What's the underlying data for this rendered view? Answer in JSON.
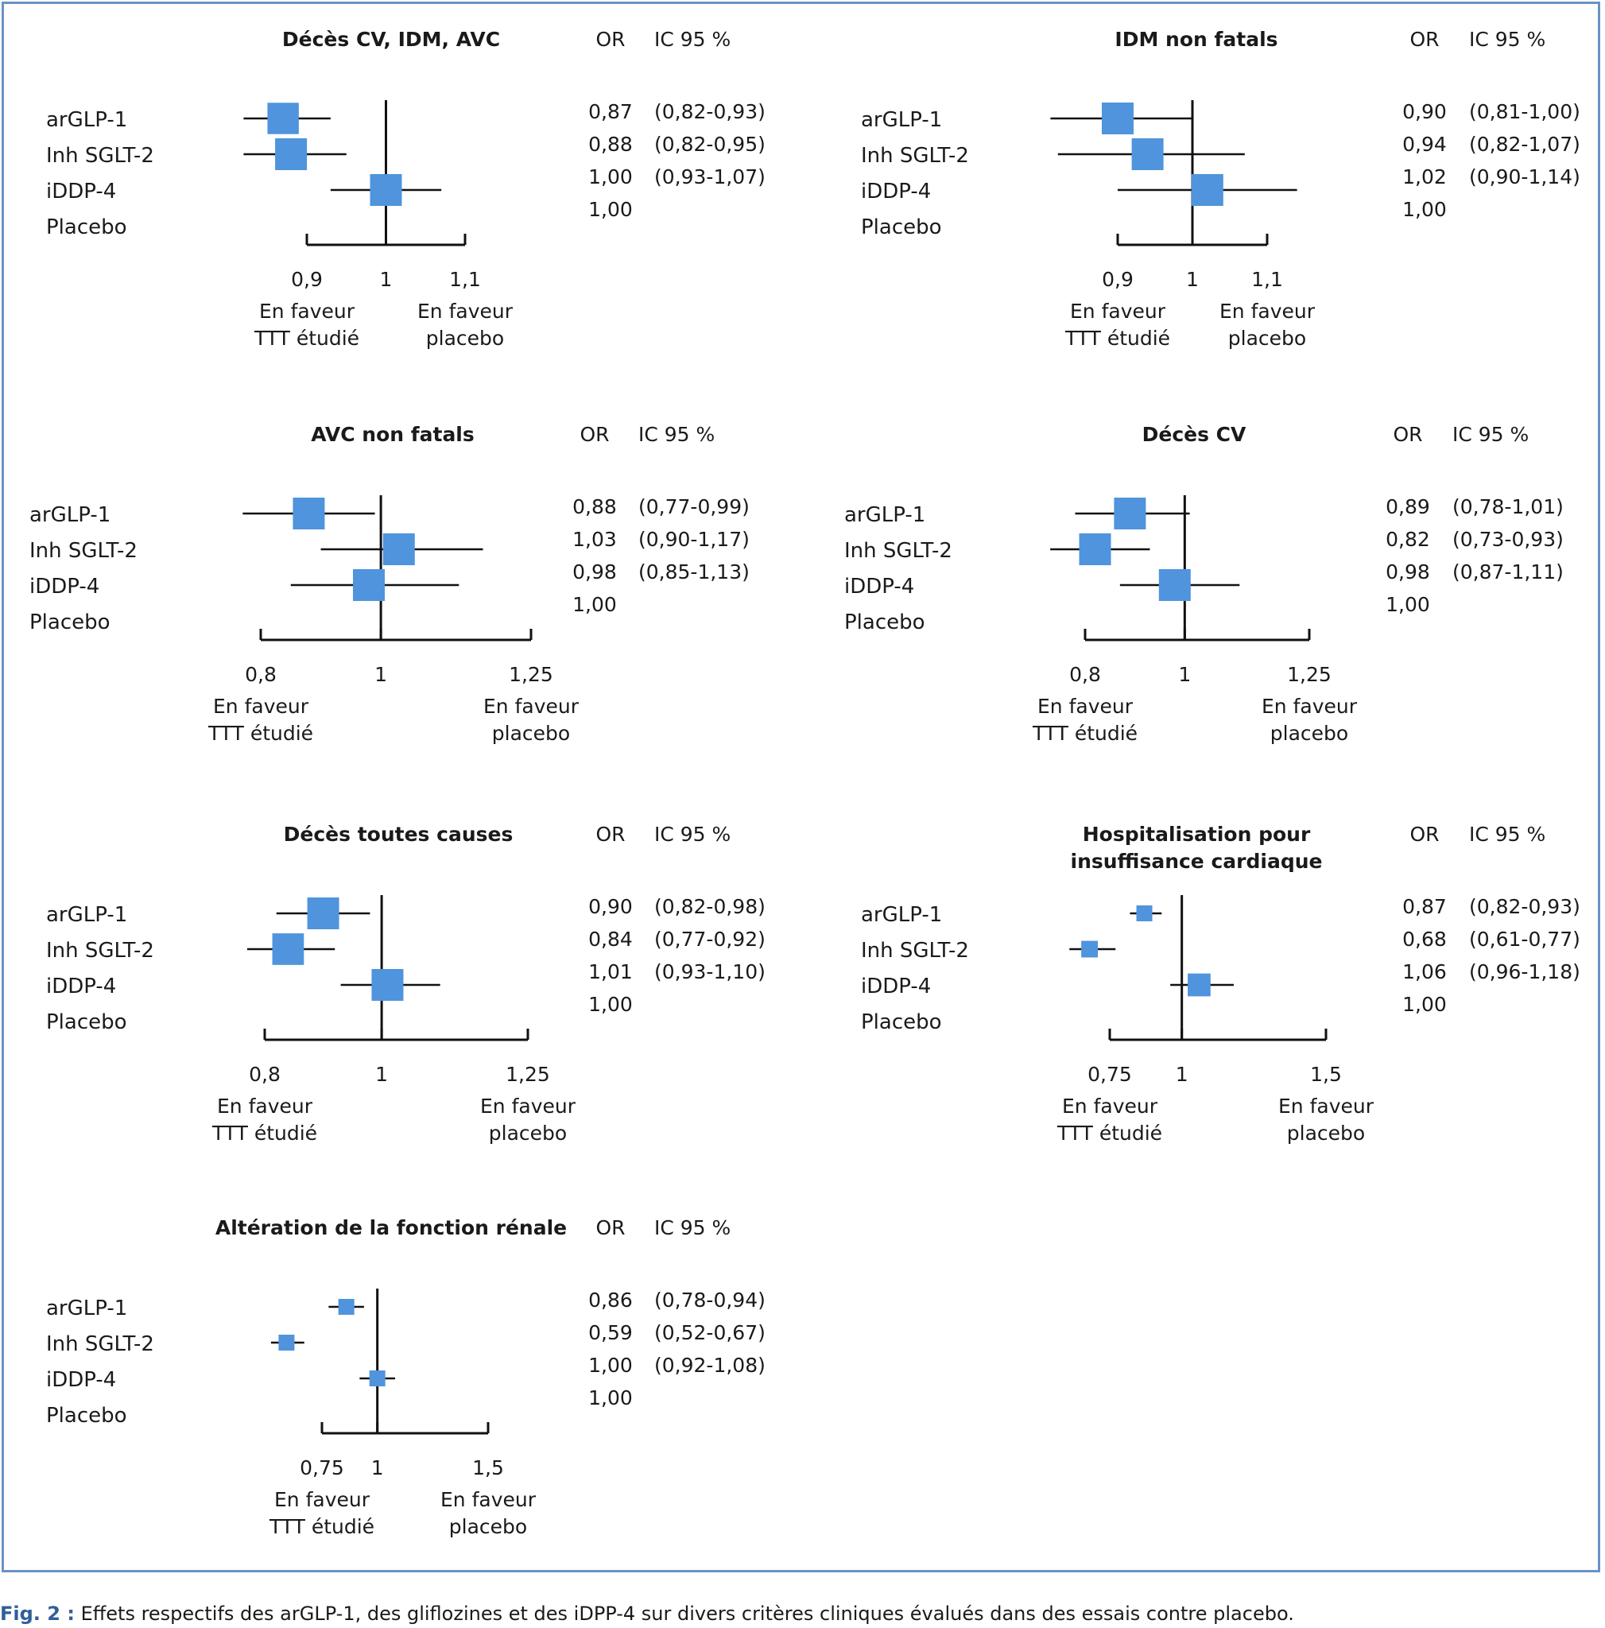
{
  "column_headers": {
    "or": "OR",
    "ci": "IC 95 %"
  },
  "favour_labels": {
    "left": [
      "En faveur",
      "TTT étudié"
    ],
    "right": [
      "En faveur",
      "placebo"
    ]
  },
  "marker_color": "#4f94dc",
  "frame_color": "#6a93c6",
  "caption": {
    "label": "Fig. 2 :",
    "text": " Effets respectifs des arGLP-1, des gliflozines et des iDPP-4 sur divers critères cliniques évalués dans des essais contre placebo."
  },
  "chart_data": [
    {
      "type": "forest",
      "title": [
        "Décès CV, IDM, AVC"
      ],
      "xlim": [
        0.9,
        1.1
      ],
      "ticks": [
        "0,9",
        "1",
        "1,1"
      ],
      "tick_values": [
        0.9,
        1,
        1.1
      ],
      "rows": [
        {
          "label": "arGLP-1",
          "or": 0.87,
          "ci": [
            0.82,
            0.93
          ],
          "or_text": "0,87",
          "ci_text": "(0,82-0,93)"
        },
        {
          "label": "Inh SGLT-2",
          "or": 0.88,
          "ci": [
            0.82,
            0.95
          ],
          "or_text": "0,88",
          "ci_text": "(0,82-0,95)"
        },
        {
          "label": "iDDP-4",
          "or": 1.0,
          "ci": [
            0.93,
            1.07
          ],
          "or_text": "1,00",
          "ci_text": "(0,93-1,07)"
        },
        {
          "label": "Placebo",
          "or": 1.0,
          "ci": null,
          "or_text": "1,00",
          "ci_text": ""
        }
      ]
    },
    {
      "type": "forest",
      "title": [
        "IDM non fatals"
      ],
      "xlim": [
        0.9,
        1.1
      ],
      "ticks": [
        "0,9",
        "1",
        "1,1"
      ],
      "tick_values": [
        0.9,
        1,
        1.1
      ],
      "rows": [
        {
          "label": "arGLP-1",
          "or": 0.9,
          "ci": [
            0.81,
            1.0
          ],
          "or_text": "0,90",
          "ci_text": "(0,81-1,00)"
        },
        {
          "label": "Inh SGLT-2",
          "or": 0.94,
          "ci": [
            0.82,
            1.07
          ],
          "or_text": "0,94",
          "ci_text": "(0,82-1,07)"
        },
        {
          "label": "iDDP-4",
          "or": 1.02,
          "ci": [
            0.9,
            1.14
          ],
          "or_text": "1,02",
          "ci_text": "(0,90-1,14)"
        },
        {
          "label": "Placebo",
          "or": 1.0,
          "ci": null,
          "or_text": "1,00",
          "ci_text": ""
        }
      ]
    },
    {
      "type": "forest",
      "title": [
        "AVC non fatals"
      ],
      "xlim": [
        0.8,
        1.25
      ],
      "ticks": [
        "0,8",
        "1",
        "1,25"
      ],
      "tick_values": [
        0.8,
        1,
        1.25
      ],
      "rows": [
        {
          "label": "arGLP-1",
          "or": 0.88,
          "ci": [
            0.77,
            0.99
          ],
          "or_text": "0,88",
          "ci_text": "(0,77-0,99)"
        },
        {
          "label": "Inh SGLT-2",
          "or": 1.03,
          "ci": [
            0.9,
            1.17
          ],
          "or_text": "1,03",
          "ci_text": "(0,90-1,17)"
        },
        {
          "label": "iDDP-4",
          "or": 0.98,
          "ci": [
            0.85,
            1.13
          ],
          "or_text": "0,98",
          "ci_text": "(0,85-1,13)"
        },
        {
          "label": "Placebo",
          "or": 1.0,
          "ci": null,
          "or_text": "1,00",
          "ci_text": ""
        }
      ]
    },
    {
      "type": "forest",
      "title": [
        "Décès CV"
      ],
      "xlim": [
        0.8,
        1.25
      ],
      "ticks": [
        "0,8",
        "1",
        "1,25"
      ],
      "tick_values": [
        0.8,
        1,
        1.25
      ],
      "rows": [
        {
          "label": "arGLP-1",
          "or": 0.89,
          "ci": [
            0.78,
            1.01
          ],
          "or_text": "0,89",
          "ci_text": "(0,78-1,01)"
        },
        {
          "label": "Inh SGLT-2",
          "or": 0.82,
          "ci": [
            0.73,
            0.93
          ],
          "or_text": "0,82",
          "ci_text": "(0,73-0,93)"
        },
        {
          "label": "iDDP-4",
          "or": 0.98,
          "ci": [
            0.87,
            1.11
          ],
          "or_text": "0,98",
          "ci_text": "(0,87-1,11)"
        },
        {
          "label": "Placebo",
          "or": 1.0,
          "ci": null,
          "or_text": "1,00",
          "ci_text": ""
        }
      ]
    },
    {
      "type": "forest",
      "title": [
        "Décès toutes causes"
      ],
      "xlim": [
        0.8,
        1.25
      ],
      "ticks": [
        "0,8",
        "1",
        "1,25"
      ],
      "tick_values": [
        0.8,
        1,
        1.25
      ],
      "rows": [
        {
          "label": "arGLP-1",
          "or": 0.9,
          "ci": [
            0.82,
            0.98
          ],
          "or_text": "0,90",
          "ci_text": "(0,82-0,98)"
        },
        {
          "label": "Inh SGLT-2",
          "or": 0.84,
          "ci": [
            0.77,
            0.92
          ],
          "or_text": "0,84",
          "ci_text": "(0,77-0,92)"
        },
        {
          "label": "iDDP-4",
          "or": 1.01,
          "ci": [
            0.93,
            1.1
          ],
          "or_text": "1,01",
          "ci_text": "(0,93-1,10)"
        },
        {
          "label": "Placebo",
          "or": 1.0,
          "ci": null,
          "or_text": "1,00",
          "ci_text": ""
        }
      ]
    },
    {
      "type": "forest",
      "title": [
        "Hospitalisation pour",
        "insuffisance cardiaque"
      ],
      "xlim": [
        0.75,
        1.5
      ],
      "ticks": [
        "0,75",
        "1",
        "1,5"
      ],
      "tick_values": [
        0.75,
        1,
        1.5
      ],
      "rows": [
        {
          "label": "arGLP-1",
          "or": 0.87,
          "ci": [
            0.82,
            0.93
          ],
          "or_text": "0,87",
          "ci_text": "(0,82-0,93)"
        },
        {
          "label": "Inh SGLT-2",
          "or": 0.68,
          "ci": [
            0.61,
            0.77
          ],
          "or_text": "0,68",
          "ci_text": "(0,61-0,77)"
        },
        {
          "label": "iDDP-4",
          "or": 1.06,
          "ci": [
            0.96,
            1.18
          ],
          "or_text": "1,06",
          "ci_text": "(0,96-1,18)"
        },
        {
          "label": "Placebo",
          "or": 1.0,
          "ci": null,
          "or_text": "1,00",
          "ci_text": ""
        }
      ]
    },
    {
      "type": "forest",
      "title": [
        "Altération de la fonction rénale"
      ],
      "xlim": [
        0.75,
        1.5
      ],
      "ticks": [
        "0,75",
        "1",
        "1,5"
      ],
      "tick_values": [
        0.75,
        1,
        1.5
      ],
      "rows": [
        {
          "label": "arGLP-1",
          "or": 0.86,
          "ci": [
            0.78,
            0.94
          ],
          "or_text": "0,86",
          "ci_text": "(0,78-0,94)"
        },
        {
          "label": "Inh SGLT-2",
          "or": 0.59,
          "ci": [
            0.52,
            0.67
          ],
          "or_text": "0,59",
          "ci_text": "(0,52-0,67)"
        },
        {
          "label": "iDDP-4",
          "or": 1.0,
          "ci": [
            0.92,
            1.08
          ],
          "or_text": "1,00",
          "ci_text": "(0,92-1,08)"
        },
        {
          "label": "Placebo",
          "or": 1.0,
          "ci": null,
          "or_text": "1,00",
          "ci_text": ""
        }
      ]
    }
  ]
}
